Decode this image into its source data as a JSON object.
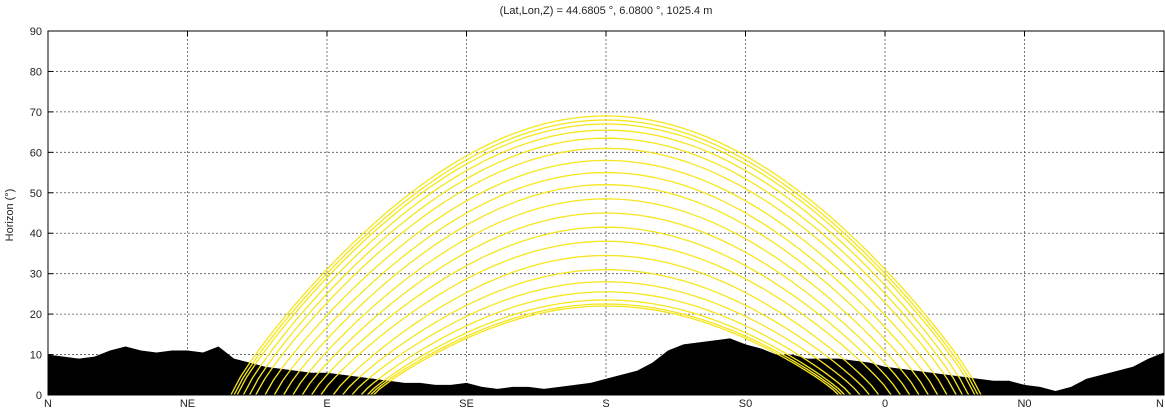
{
  "chart_data": {
    "type": "line",
    "title": "(Lat,Lon,Z) = 44.6805 °, 6.0800 °, 1025.4 m",
    "xlabel": "",
    "ylabel": "Horizon (°)",
    "xlim": [
      0,
      360
    ],
    "ylim": [
      0,
      90
    ],
    "grid": true,
    "x_ticks": [
      0,
      45,
      90,
      135,
      180,
      225,
      270,
      315,
      360
    ],
    "x_tick_labels": [
      "N",
      "NE",
      "E",
      "SE",
      "S",
      "S0",
      "0",
      "N0",
      "N"
    ],
    "y_ticks": [
      0,
      10,
      20,
      30,
      40,
      50,
      60,
      70,
      80,
      90
    ],
    "y_tick_labels": [
      "0",
      "10",
      "20",
      "30",
      "40",
      "50",
      "60",
      "70",
      "80",
      "90"
    ],
    "horizon_profile": {
      "name": "",
      "color": "#000000",
      "azimuth": [
        0,
        5,
        10,
        15,
        20,
        25,
        30,
        35,
        40,
        45,
        50,
        55,
        60,
        65,
        70,
        75,
        80,
        85,
        90,
        95,
        100,
        105,
        110,
        115,
        120,
        125,
        130,
        135,
        140,
        145,
        150,
        155,
        160,
        165,
        170,
        175,
        180,
        185,
        190,
        195,
        200,
        205,
        210,
        215,
        220,
        225,
        230,
        235,
        240,
        245,
        250,
        255,
        260,
        265,
        270,
        275,
        280,
        285,
        290,
        295,
        300,
        305,
        310,
        315,
        320,
        325,
        330,
        335,
        340,
        345,
        350,
        355,
        360
      ],
      "elevation": [
        10,
        9.5,
        9,
        9.5,
        11,
        12,
        11,
        10.5,
        11,
        11,
        10.5,
        12,
        9,
        8,
        7,
        6.5,
        6,
        5.5,
        5.5,
        5,
        4.5,
        4,
        3.5,
        3,
        3,
        2.5,
        2.5,
        3,
        2,
        1.5,
        2,
        2,
        1.5,
        2,
        2.5,
        3,
        4,
        5,
        6,
        8,
        11,
        12.5,
        13,
        13.5,
        14,
        12.5,
        11.5,
        10,
        10,
        9,
        9,
        9,
        8.5,
        8,
        7,
        6.5,
        6,
        5.5,
        5,
        4.5,
        4,
        3.5,
        3.5,
        2.5,
        2,
        1,
        2,
        4,
        5,
        6,
        7,
        9,
        10.5
      ]
    },
    "series": [
      {
        "color": "#f5e61e",
        "sunrise_az": 59,
        "sunset_az": 301,
        "max_elevation": 69
      },
      {
        "color": "#f5e61e",
        "sunrise_az": 60,
        "sunset_az": 300,
        "max_elevation": 68
      },
      {
        "color": "#f5e61e",
        "sunrise_az": 61,
        "sunset_az": 299,
        "max_elevation": 67
      },
      {
        "color": "#f5e61e",
        "sunrise_az": 63,
        "sunset_az": 297,
        "max_elevation": 65.5
      },
      {
        "color": "#f5e61e",
        "sunrise_az": 65,
        "sunset_az": 295,
        "max_elevation": 63.5
      },
      {
        "color": "#f5e61e",
        "sunrise_az": 67,
        "sunset_az": 293,
        "max_elevation": 61
      },
      {
        "color": "#f5e61e",
        "sunrise_az": 70,
        "sunset_az": 290,
        "max_elevation": 58
      },
      {
        "color": "#f5e61e",
        "sunrise_az": 73,
        "sunset_az": 287,
        "max_elevation": 55
      },
      {
        "color": "#f5e61e",
        "sunrise_az": 76,
        "sunset_az": 284,
        "max_elevation": 52
      },
      {
        "color": "#f5e61e",
        "sunrise_az": 79,
        "sunset_az": 281,
        "max_elevation": 48.5
      },
      {
        "color": "#f5e61e",
        "sunrise_az": 82,
        "sunset_az": 278,
        "max_elevation": 45
      },
      {
        "color": "#f5e61e",
        "sunrise_az": 85,
        "sunset_az": 275,
        "max_elevation": 41.5
      },
      {
        "color": "#f5e61e",
        "sunrise_az": 88,
        "sunset_az": 272,
        "max_elevation": 38
      },
      {
        "color": "#f5e61e",
        "sunrise_az": 92,
        "sunset_az": 268,
        "max_elevation": 34.5
      },
      {
        "color": "#f5e61e",
        "sunrise_az": 95,
        "sunset_az": 265,
        "max_elevation": 31
      },
      {
        "color": "#f5e61e",
        "sunrise_az": 98,
        "sunset_az": 262,
        "max_elevation": 28
      },
      {
        "color": "#f5e61e",
        "sunrise_az": 101,
        "sunset_az": 259,
        "max_elevation": 25.5
      },
      {
        "color": "#f5e61e",
        "sunrise_az": 103,
        "sunset_az": 257,
        "max_elevation": 23.5
      },
      {
        "color": "#f5e61e",
        "sunrise_az": 104,
        "sunset_az": 256,
        "max_elevation": 22.5
      },
      {
        "color": "#f5e61e",
        "sunrise_az": 105,
        "sunset_az": 255,
        "max_elevation": 22
      }
    ]
  }
}
